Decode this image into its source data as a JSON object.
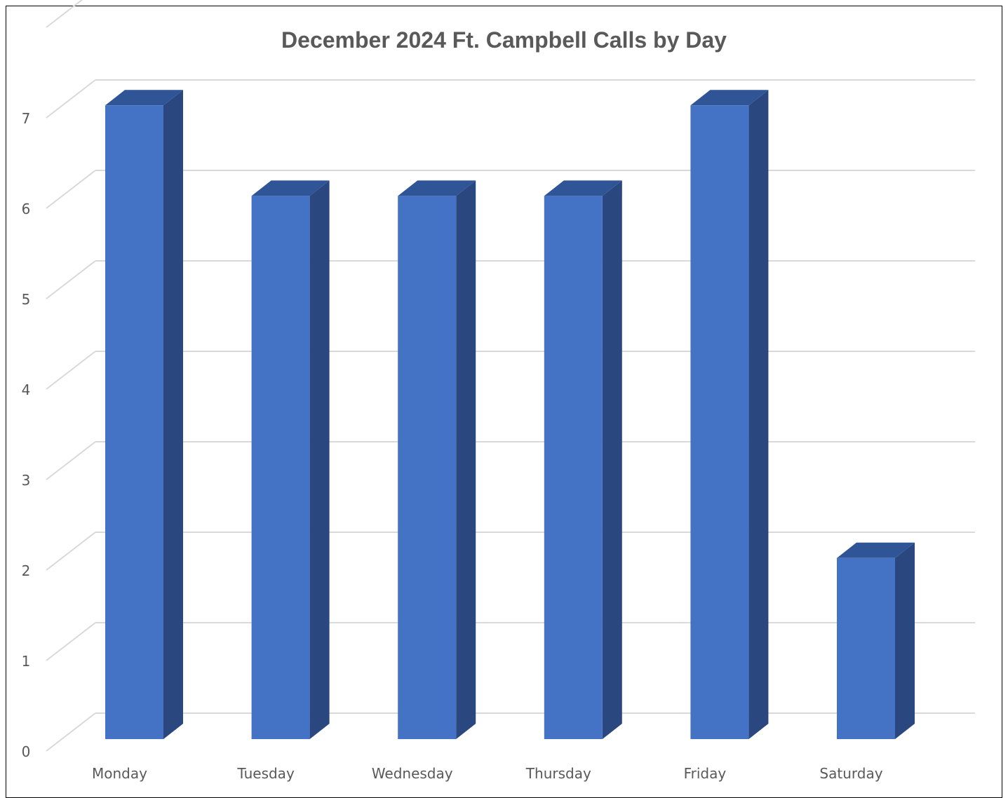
{
  "chart_data": {
    "type": "bar",
    "style": "3d-column",
    "title": "December 2024 Ft. Campbell Calls by Day",
    "categories": [
      "Monday",
      "Tuesday",
      "Wednesday",
      "Thursday",
      "Friday",
      "Saturday"
    ],
    "values": [
      7,
      6,
      6,
      6,
      7,
      2
    ],
    "ylim": [
      0,
      7
    ],
    "yticks": [
      "0",
      "1",
      "2",
      "3",
      "4",
      "5",
      "6",
      "7"
    ],
    "grid": true,
    "legend": "none",
    "colors": {
      "bar_front": "#4472C4",
      "bar_side": "#2A477F",
      "bar_top": "#2F5597",
      "grid": "#D9D9D9",
      "text": "#595959"
    }
  }
}
